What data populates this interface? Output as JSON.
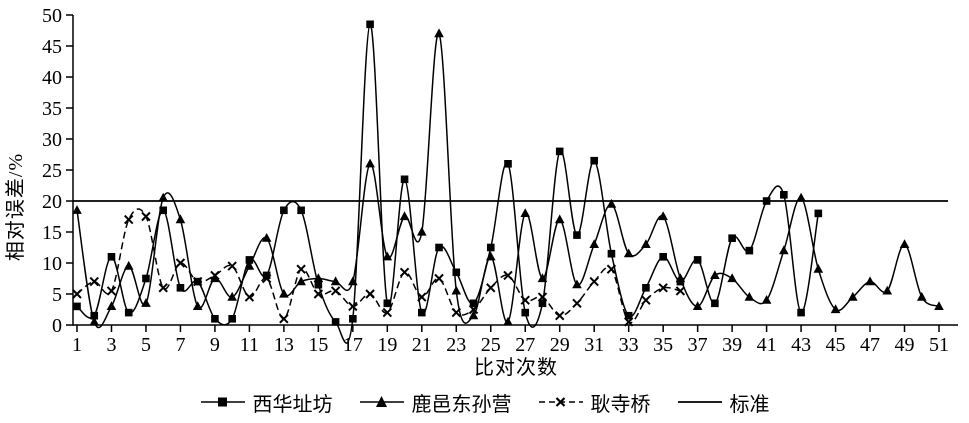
{
  "chart_data": {
    "type": "line",
    "xlabel": "比对次数",
    "ylabel": "相对误差/%",
    "x_range": [
      1,
      51
    ],
    "ylim": [
      0,
      50
    ],
    "yticks": [
      0,
      5,
      10,
      15,
      20,
      25,
      30,
      35,
      40,
      45,
      50
    ],
    "xticks": [
      1,
      3,
      5,
      7,
      9,
      11,
      13,
      15,
      17,
      19,
      21,
      23,
      25,
      27,
      29,
      31,
      33,
      35,
      37,
      39,
      41,
      43,
      45,
      47,
      49,
      51
    ],
    "grid": false,
    "legend_position": "bottom",
    "color": "#000000",
    "series": [
      {
        "key": "xihuazhifang",
        "name": "西华址坊",
        "marker": "square",
        "line": "solid",
        "color": "#000000",
        "x_start": 1,
        "values": [
          3,
          1.5,
          11,
          2,
          7.5,
          18.5,
          6,
          7,
          1,
          1,
          10.5,
          8,
          18.5,
          18.5,
          6.5,
          0.5,
          1,
          48.5,
          3.5,
          23.5,
          2,
          12.5,
          8.5,
          3.5,
          12.5,
          26,
          2,
          3.5,
          28,
          14.5,
          26.5,
          11.5,
          1.5,
          6,
          11,
          7,
          10.5,
          3.5,
          14,
          12,
          20,
          21,
          2,
          18
        ]
      },
      {
        "key": "luyidongsunying",
        "name": "鹿邑东孙营",
        "marker": "triangle",
        "line": "solid",
        "color": "#000000",
        "x_start": 1,
        "values": [
          18.5,
          0.5,
          3,
          9.5,
          3.5,
          20.5,
          17,
          3,
          7.5,
          4.5,
          9.5,
          14,
          5,
          7,
          7.5,
          7,
          7,
          26,
          11,
          17.5,
          15,
          47,
          5.5,
          1.5,
          11,
          0.5,
          18,
          7.5,
          17,
          6.5,
          13,
          19.5,
          11.5,
          13,
          17.5,
          7.5,
          3,
          8,
          7.5,
          4.5,
          4,
          12,
          20.5,
          9,
          2.5,
          4.5,
          7,
          5.5,
          13,
          4.5,
          3
        ]
      },
      {
        "key": "gengsiqiao",
        "name": "耿寺桥",
        "marker": "x",
        "line": "dashed",
        "color": "#000000",
        "x_start": 1,
        "values": [
          5,
          7,
          5.5,
          17,
          17.5,
          6,
          10,
          7,
          8,
          9.5,
          4.5,
          7.5,
          1,
          9,
          5,
          5.5,
          3,
          5,
          2,
          8.5,
          4.5,
          7.5,
          2,
          2.5,
          6,
          8,
          4,
          4.5,
          1.5,
          3.5,
          7,
          9,
          0.5,
          4,
          6,
          5.5
        ]
      },
      {
        "key": "biaozhun",
        "name": "标准",
        "marker": "none",
        "line": "solid",
        "color": "#000000",
        "constant": 20
      }
    ]
  }
}
